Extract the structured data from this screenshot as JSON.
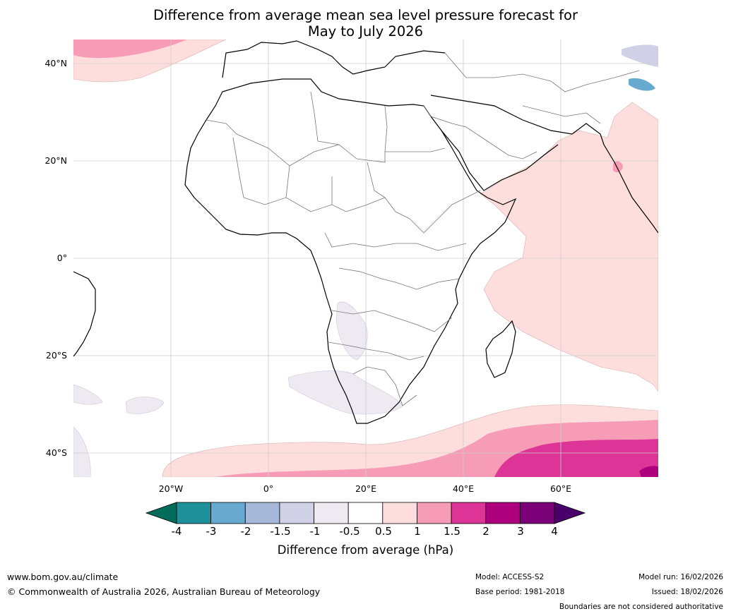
{
  "title": {
    "line1": "Difference from average mean sea level pressure forecast for",
    "line2": "May to July 2026"
  },
  "lat_labels": [
    "40°N",
    "20°N",
    "0°",
    "20°S",
    "40°S"
  ],
  "lon_labels": [
    "20°W",
    "0°",
    "20°E",
    "40°E",
    "60°E"
  ],
  "colorbar": {
    "ticks": [
      "-4",
      "-3",
      "-2",
      "-1.5",
      "-1",
      "-0.5",
      "0.5",
      "1",
      "1.5",
      "2",
      "3",
      "4"
    ],
    "colors": [
      "#1e9099",
      "#67a9cf",
      "#a6b8d9",
      "#d0d1e6",
      "#efeaf2",
      "#ffffff",
      "#fddedd",
      "#f79cb7",
      "#dd3497",
      "#ae017e",
      "#7a0177"
    ],
    "under_color": "#016c59",
    "over_color": "#49006a",
    "label": "Difference from average (hPa)"
  },
  "footer": {
    "website": "www.bom.gov.au/climate",
    "copyright": "© Commonwealth of Australia 2026, Australian Bureau of Meteorology",
    "model": "Model: ACCESS-S2",
    "base_period": "Base period: 1981-2018",
    "model_run": "Model run: 16/02/2026",
    "issued": "Issued: 18/02/2026",
    "disclaimer": "Boundaries are not considered authoritative"
  }
}
